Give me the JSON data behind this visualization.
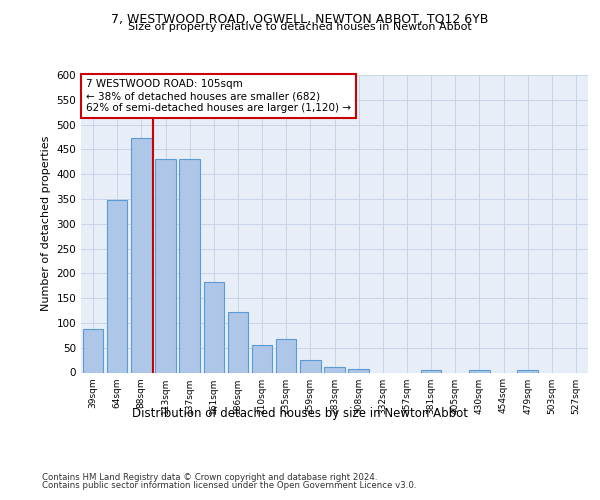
{
  "title_line1": "7, WESTWOOD ROAD, OGWELL, NEWTON ABBOT, TQ12 6YB",
  "title_line2": "Size of property relative to detached houses in Newton Abbot",
  "xlabel": "Distribution of detached houses by size in Newton Abbot",
  "ylabel": "Number of detached properties",
  "footnote1": "Contains HM Land Registry data © Crown copyright and database right 2024.",
  "footnote2": "Contains public sector information licensed under the Open Government Licence v3.0.",
  "annotation_line1": "7 WESTWOOD ROAD: 105sqm",
  "annotation_line2": "← 38% of detached houses are smaller (682)",
  "annotation_line3": "62% of semi-detached houses are larger (1,120) →",
  "bar_labels": [
    "39sqm",
    "64sqm",
    "88sqm",
    "113sqm",
    "137sqm",
    "161sqm",
    "186sqm",
    "210sqm",
    "235sqm",
    "259sqm",
    "283sqm",
    "308sqm",
    "332sqm",
    "357sqm",
    "381sqm",
    "405sqm",
    "430sqm",
    "454sqm",
    "479sqm",
    "503sqm",
    "527sqm"
  ],
  "bar_values": [
    88,
    348,
    473,
    430,
    430,
    183,
    122,
    55,
    68,
    25,
    12,
    8,
    0,
    0,
    5,
    0,
    5,
    0,
    5,
    0,
    0
  ],
  "bar_color": "#aec6e8",
  "bar_edge_color": "#5b9bd5",
  "vline_color": "#cc0000",
  "annotation_box_color": "#cc0000",
  "ylim": [
    0,
    600
  ],
  "yticks": [
    0,
    50,
    100,
    150,
    200,
    250,
    300,
    350,
    400,
    450,
    500,
    550,
    600
  ],
  "background_color": "#e8eef8",
  "grid_color": "#c8d4e8",
  "fig_bg": "#ffffff"
}
